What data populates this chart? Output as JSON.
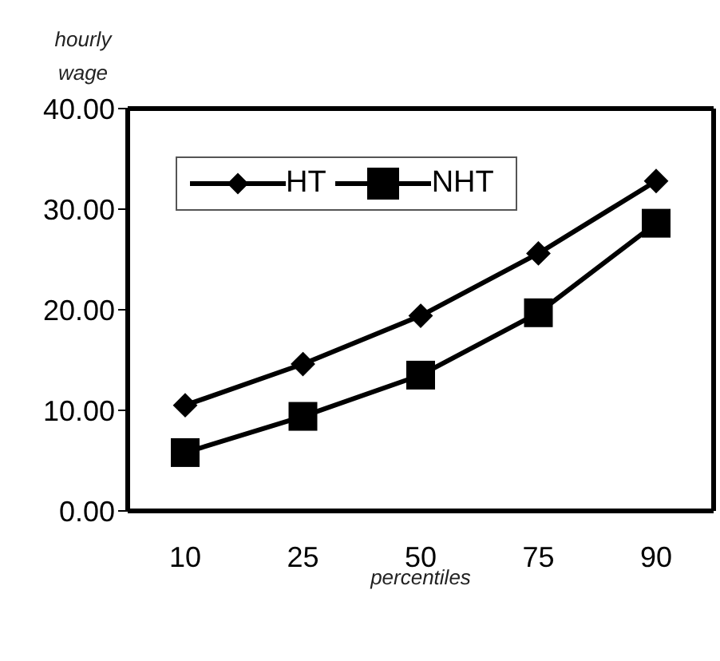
{
  "chart_data": {
    "type": "line",
    "xlabel": "percentiles",
    "ylabel": "hourly wage",
    "categories": [
      "10",
      "25",
      "50",
      "75",
      "90"
    ],
    "series": [
      {
        "name": "HT",
        "color": "#000000",
        "marker": "diamond",
        "values": [
          10.5,
          14.6,
          19.4,
          25.6,
          32.8
        ]
      },
      {
        "name": "NHT",
        "color": "#000000",
        "marker": "square",
        "values": [
          5.8,
          9.4,
          13.5,
          19.7,
          28.6
        ]
      }
    ],
    "ylim": [
      0,
      40
    ],
    "yticks": [
      {
        "value": 0,
        "label": "0.00"
      },
      {
        "value": 10,
        "label": "10.00"
      },
      {
        "value": 20,
        "label": "20.00"
      },
      {
        "value": 30,
        "label": "30.00"
      },
      {
        "value": 40,
        "label": "40.00"
      }
    ],
    "grid": false,
    "legend": "top left",
    "line_style": "solid"
  }
}
